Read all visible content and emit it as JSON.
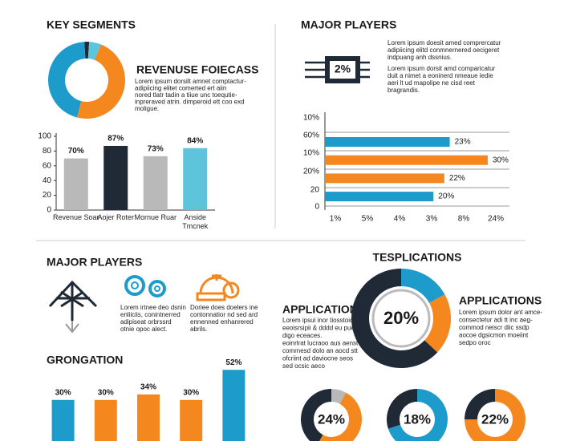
{
  "chart_data": [
    {
      "type": "pie",
      "title": "KEY SEGMENTS",
      "values": [
        2,
        5,
        48,
        45
      ],
      "colors": [
        "#1f2a36",
        "#5ec4dc",
        "#f5871f",
        "#1d9ccc"
      ]
    },
    {
      "type": "bar",
      "categories": [
        "Revenue Soar",
        "Aojer Roter",
        "Mornue Ruar",
        "Anside Tmcnek"
      ],
      "values": [
        70,
        87,
        73,
        84
      ],
      "value_labels": [
        "70%",
        "87%",
        "73%",
        "84%"
      ],
      "colors": [
        "#b9b9b9",
        "#1f2a36",
        "#b9b9b9",
        "#5ec4dc"
      ],
      "ylim": [
        0,
        100
      ],
      "yticks": [
        0,
        20,
        40,
        60,
        80,
        100
      ]
    },
    {
      "type": "hbar",
      "title": "MAJOR PLAYERS",
      "values": [
        23,
        30,
        22,
        20
      ],
      "value_labels": [
        "23%",
        "30%",
        "22%",
        "20%"
      ],
      "colors": [
        "#1d9ccc",
        "#f5871f",
        "#f5871f",
        "#1d9ccc"
      ],
      "xlim": [
        0,
        34
      ],
      "row_labels": [
        "10%",
        "60%",
        "10%",
        "20%",
        "20",
        "0"
      ],
      "column_labels": [
        "1%",
        "5%",
        "4%",
        "3%",
        "8%",
        "24%"
      ]
    },
    {
      "type": "bar",
      "title": "GRONGATION",
      "values": [
        30,
        30,
        34,
        30,
        52
      ],
      "value_labels": [
        "30%",
        "30%",
        "34%",
        "30%",
        "52%"
      ],
      "colors": [
        "#1d9ccc",
        "#f5871f",
        "#f5871f",
        "#f5871f",
        "#1d9ccc"
      ],
      "ylim": [
        0,
        58
      ]
    },
    {
      "type": "pie",
      "title": "TESPLICATIONS",
      "center_label": "20%",
      "values": [
        17,
        20,
        63
      ],
      "colors": [
        "#1d9ccc",
        "#f5871f",
        "#1f2a36"
      ]
    },
    {
      "type": "pie",
      "center_label": "24%",
      "values": [
        8,
        50,
        42
      ],
      "colors": [
        "#b9b9b9",
        "#f5871f",
        "#1f2a36"
      ]
    },
    {
      "type": "pie",
      "center_label": "18%",
      "values": [
        70,
        30
      ],
      "colors": [
        "#1d9ccc",
        "#1f2a36"
      ]
    },
    {
      "type": "pie",
      "center_label": "22%",
      "values": [
        75,
        25
      ],
      "colors": [
        "#f5871f",
        "#1f2a36"
      ]
    }
  ],
  "revenue": {
    "heading": "REVENUSE FOIECASS",
    "lines": [
      "Lorem ipsum dorsilt amnet comptactur-",
      "adipiicing elitet comerted ert aiin",
      "nored tlatr tadin a tiiue unc toequtie-",
      "inpreraved atrin. dimperoid ett coo exd",
      "moligue."
    ]
  },
  "players_top": {
    "chip": "2%",
    "para1": [
      "Lorem ipsum doesit amed comprercatur",
      "adipiicing elitd conmnernered oecigeret",
      "indpuang anh dssnius."
    ],
    "para2": [
      "Lorem ipsum dorsit amd comparicatur",
      "duit a nimet a eoninerd nmeaue iedie",
      "aeri lt ud mapolipe ne cisd reet",
      "bragrandis."
    ]
  },
  "players_bottom": {
    "title": "MAJOR PLAYERS",
    "para1": [
      "Lorem irtnee deo dsnin",
      "enliiciis, conintnerred",
      "adipiseat orbrssrd",
      "otnie opoc alect."
    ],
    "para2": [
      "Doriee does doelers ine",
      "contonnatior nd sed ard",
      "ennenned enhanrered",
      "abrils."
    ]
  },
  "applications_left": {
    "heading": "APPLICATIONS",
    "lines": [
      "Lorem ipsui inor tiosstoic",
      "eeoisrsipii & dddd eu pueos",
      "digo eceaces.",
      "eoinrlrat lucraoo aus aenst",
      "comrnesd dolo an aocd stt",
      "ofcriint ad daviocne seos",
      "sed ocsic aeco"
    ]
  },
  "applications_right": {
    "heading": "APPLICATIONS",
    "lines": [
      "Lorem ipsum dolor ant amce-",
      "consectetur adi tt inc aeg-",
      "commod neiscr diic ssdp",
      "aocoe dgsicmon moeiint",
      "sedpo oroc"
    ]
  }
}
